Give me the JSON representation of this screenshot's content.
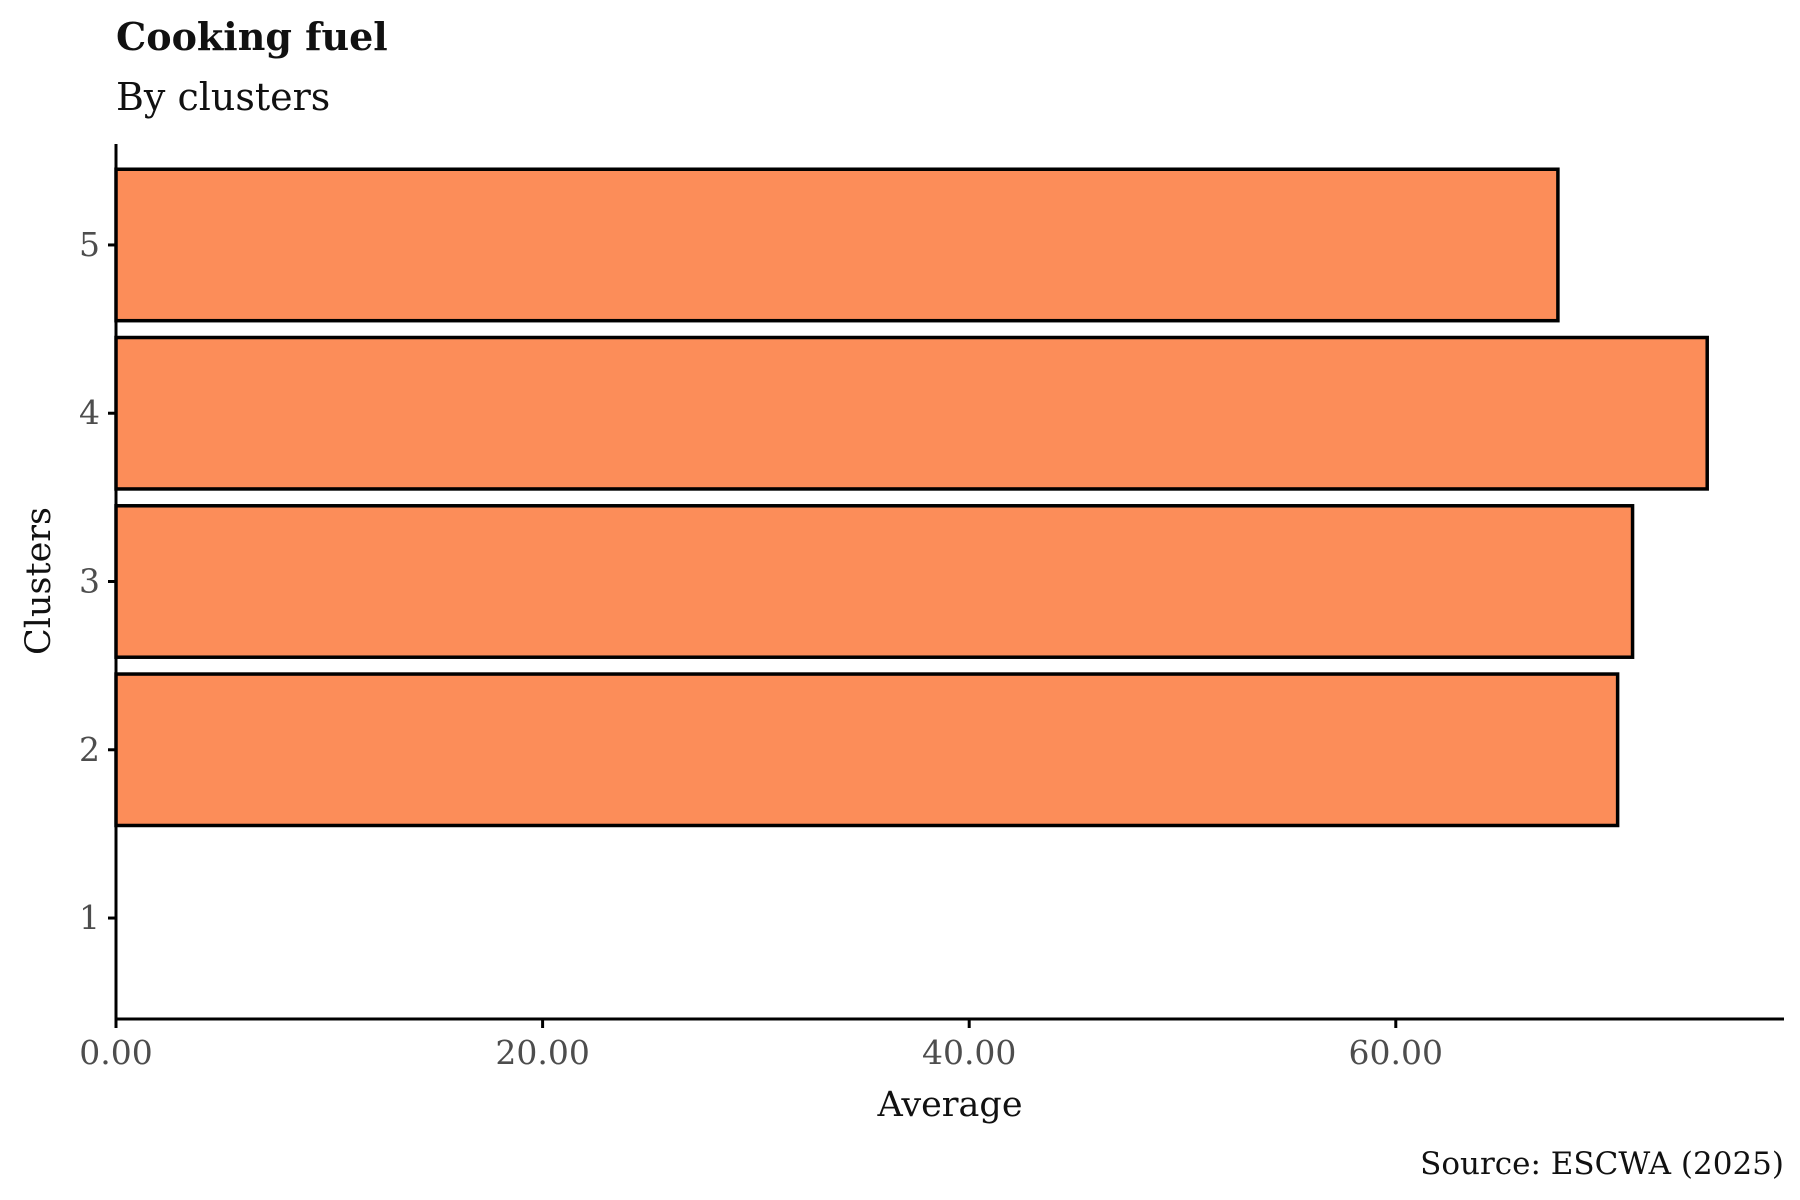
{
  "chart_data": {
    "type": "bar",
    "orientation": "horizontal",
    "title": "Cooking fuel",
    "subtitle": "By clusters",
    "xlabel": "Average",
    "ylabel": "Clusters",
    "caption": "Source: ESCWA (2025)",
    "categories": [
      "1",
      "2",
      "3",
      "4",
      "5"
    ],
    "values": [
      0,
      70.4,
      71.1,
      74.6,
      67.6
    ],
    "xlim": [
      0,
      78.2
    ],
    "xticks": [
      0,
      20,
      40,
      60
    ],
    "xtick_labels": [
      "0.00",
      "20.00",
      "40.00",
      "60.00"
    ],
    "grid": false,
    "legend": "none",
    "colors": {
      "bar_fill": "#FC8D59",
      "bar_outline": "#000000"
    }
  }
}
